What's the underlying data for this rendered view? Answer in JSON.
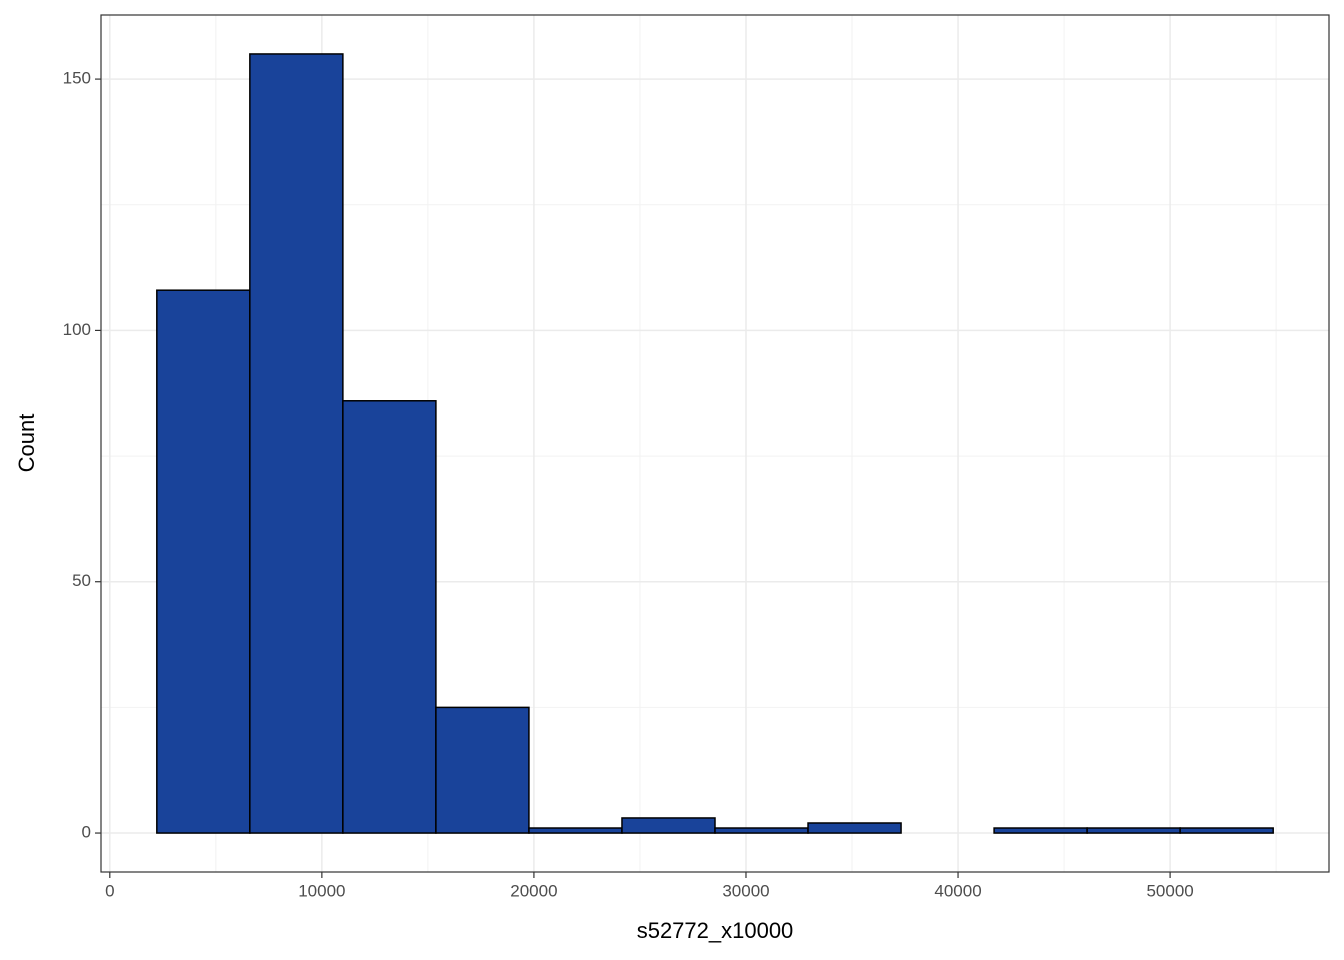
{
  "chart_data": {
    "type": "histogram",
    "x_label": "s52772_x10000",
    "y_label": "Count",
    "bins": [
      2217,
      6604,
      10991,
      15378,
      19765,
      24152,
      28539,
      32926,
      37313,
      41700,
      46087,
      50474,
      54861
    ],
    "values": [
      108,
      155,
      86,
      25,
      1,
      3,
      1,
      2,
      0,
      1,
      1,
      1
    ],
    "color": "#19439a",
    "edge_color": "#000000",
    "xlim": [
      -415,
      57493
    ],
    "ylim": [
      -7.75,
      162.75
    ],
    "xticks": [
      0,
      10000,
      20000,
      30000,
      40000,
      50000
    ],
    "yticks": [
      0,
      50,
      100,
      150
    ],
    "minor_xticks": [
      5000,
      15000,
      25000,
      35000,
      45000,
      55000
    ],
    "minor_yticks": [
      25,
      75,
      125
    ],
    "grid": true
  }
}
